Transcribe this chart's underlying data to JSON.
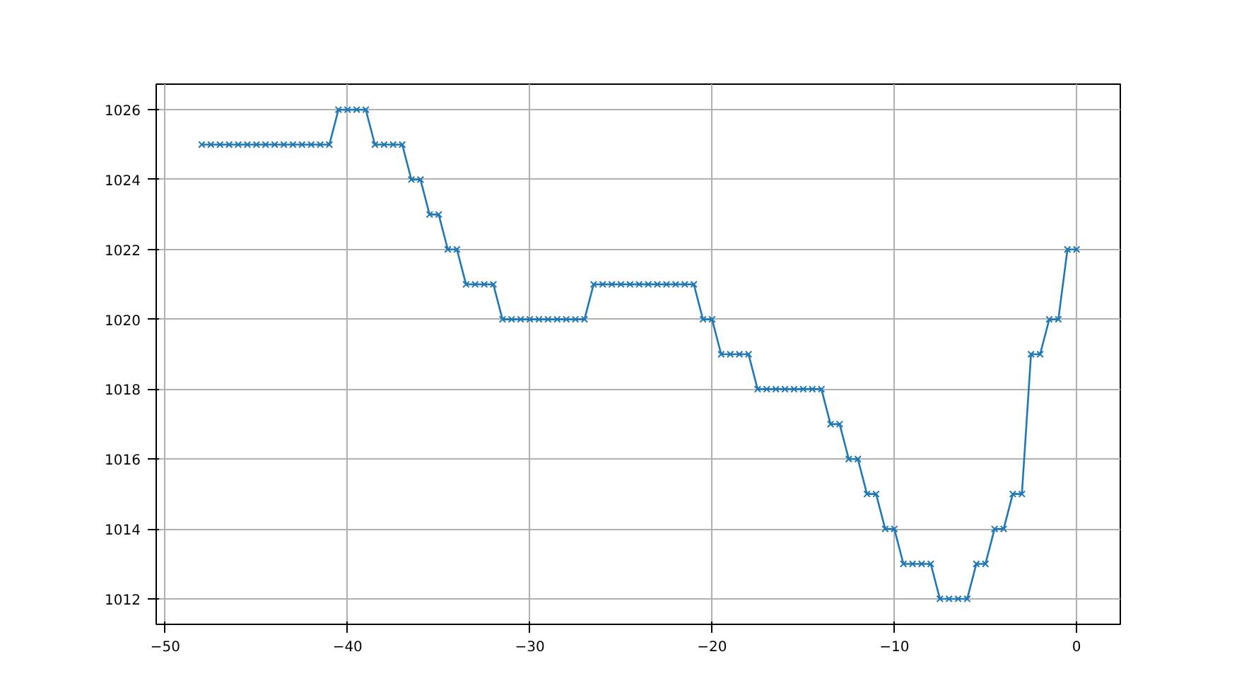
{
  "chart_data": {
    "type": "line",
    "marker": "cross",
    "line_style": "solid",
    "grid": true,
    "x": [
      -48,
      -47.5,
      -47,
      -46.5,
      -46,
      -45.5,
      -45,
      -44.5,
      -44,
      -43.5,
      -43,
      -42.5,
      -42,
      -41.5,
      -41,
      -40.5,
      -40,
      -39.5,
      -39,
      -38.5,
      -38,
      -37.5,
      -37,
      -36.5,
      -36,
      -35.5,
      -35,
      -34.5,
      -34,
      -33.5,
      -33,
      -32.5,
      -32,
      -31.5,
      -31,
      -30.5,
      -30,
      -29.5,
      -29,
      -28.5,
      -28,
      -27.5,
      -27,
      -26.5,
      -26,
      -25.5,
      -25,
      -24.5,
      -24,
      -23.5,
      -23,
      -22.5,
      -22,
      -21.5,
      -21,
      -20.5,
      -20,
      -19.5,
      -19,
      -18.5,
      -18,
      -17.5,
      -17,
      -16.5,
      -16,
      -15.5,
      -15,
      -14.5,
      -14,
      -13.5,
      -13,
      -12.5,
      -12,
      -11.5,
      -11,
      -10.5,
      -10,
      -9.5,
      -9,
      -8.5,
      -8,
      -7.5,
      -7,
      -6.5,
      -6,
      -5.5,
      -5,
      -4.5,
      -4,
      -3.5,
      -3,
      -2.5,
      -2,
      -1.5,
      -1,
      -0.5,
      0
    ],
    "series": [
      {
        "color": "#1f77b4",
        "values": [
          1025,
          1025,
          1025,
          1025,
          1025,
          1025,
          1025,
          1025,
          1025,
          1025,
          1025,
          1025,
          1025,
          1025,
          1025,
          1026,
          1026,
          1026,
          1026,
          1025,
          1025,
          1025,
          1025,
          1024,
          1024,
          1023,
          1023,
          1022,
          1022,
          1021,
          1021,
          1021,
          1021,
          1020,
          1020,
          1020,
          1020,
          1020,
          1020,
          1020,
          1020,
          1020,
          1020,
          1021,
          1021,
          1021,
          1021,
          1021,
          1021,
          1021,
          1021,
          1021,
          1021,
          1021,
          1021,
          1020,
          1020,
          1019,
          1019,
          1019,
          1019,
          1018,
          1018,
          1018,
          1018,
          1018,
          1018,
          1018,
          1018,
          1017,
          1017,
          1016,
          1016,
          1015,
          1015,
          1014,
          1014,
          1013,
          1013,
          1013,
          1013,
          1012,
          1012,
          1012,
          1012,
          1013,
          1013,
          1014,
          1014,
          1015,
          1015,
          1019,
          1019,
          1020,
          1020,
          1022,
          1022
        ]
      }
    ],
    "xlim": [
      -50.5,
      2.4
    ],
    "ylim": [
      1011.27,
      1026.73
    ],
    "xticks": [
      {
        "value": -50,
        "label": "−50"
      },
      {
        "value": -40,
        "label": "−40"
      },
      {
        "value": -30,
        "label": "−30"
      },
      {
        "value": -20,
        "label": "−20"
      },
      {
        "value": -10,
        "label": "−10"
      },
      0
    ],
    "yticks": [
      1012,
      1014,
      1016,
      1018,
      1020,
      1022,
      1024,
      1026
    ]
  }
}
